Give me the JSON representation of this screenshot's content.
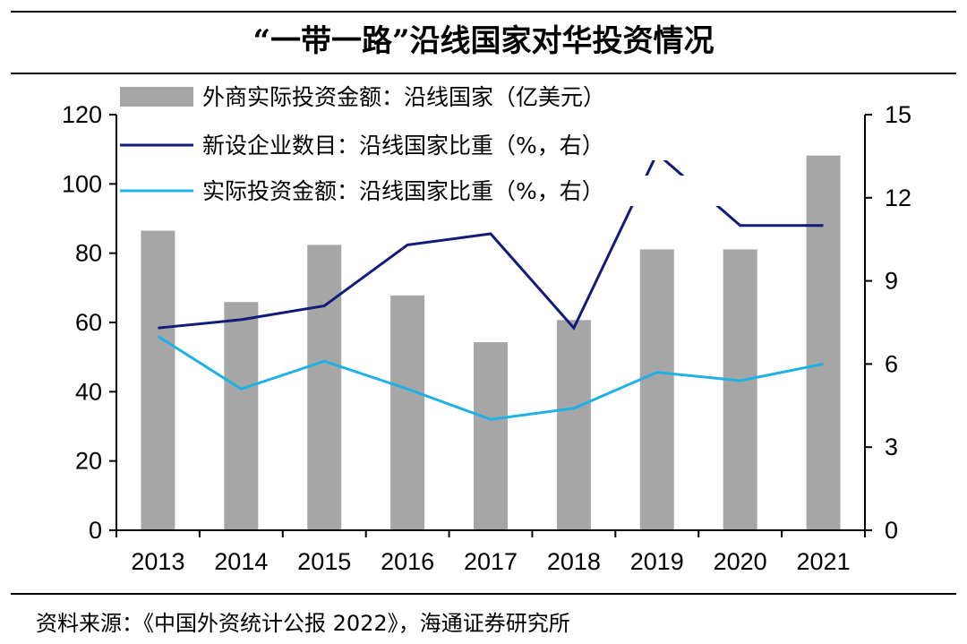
{
  "source": "资料来源：《中国外资统计公报 2022》，海通证券研究所",
  "chart_data": {
    "type": "bar",
    "title": "“一带一路”沿线国家对华投资情况",
    "categories": [
      "2013",
      "2014",
      "2015",
      "2016",
      "2017",
      "2018",
      "2019",
      "2020",
      "2021"
    ],
    "ylim_left": [
      0,
      120
    ],
    "yticks_left": [
      0,
      20,
      40,
      60,
      80,
      100,
      120
    ],
    "ylim_right": [
      0,
      15
    ],
    "yticks_right": [
      0,
      3,
      6,
      9,
      12,
      15
    ],
    "grid": false,
    "legend_position": "top-left",
    "series": [
      {
        "name": "外商实际投资金额：沿线国家（亿美元）",
        "type": "bar",
        "axis": "left",
        "color": "#a6a6a6",
        "values": [
          86.5,
          65.9,
          82.4,
          67.8,
          54.3,
          60.7,
          81.1,
          81.1,
          108.2
        ]
      },
      {
        "name": "新设企业数目：沿线国家比重（%，右）",
        "type": "line",
        "axis": "right",
        "color": "#121a7a",
        "values": [
          7.3,
          7.6,
          8.1,
          10.3,
          10.7,
          7.3,
          13.6,
          11.0,
          11.0
        ]
      },
      {
        "name": "实际投资金额：沿线国家比重（%，右）",
        "type": "line",
        "axis": "right",
        "color": "#1fb1e6",
        "values": [
          7.0,
          5.1,
          6.1,
          5.1,
          4.0,
          4.4,
          5.7,
          5.4,
          6.0
        ]
      }
    ]
  }
}
